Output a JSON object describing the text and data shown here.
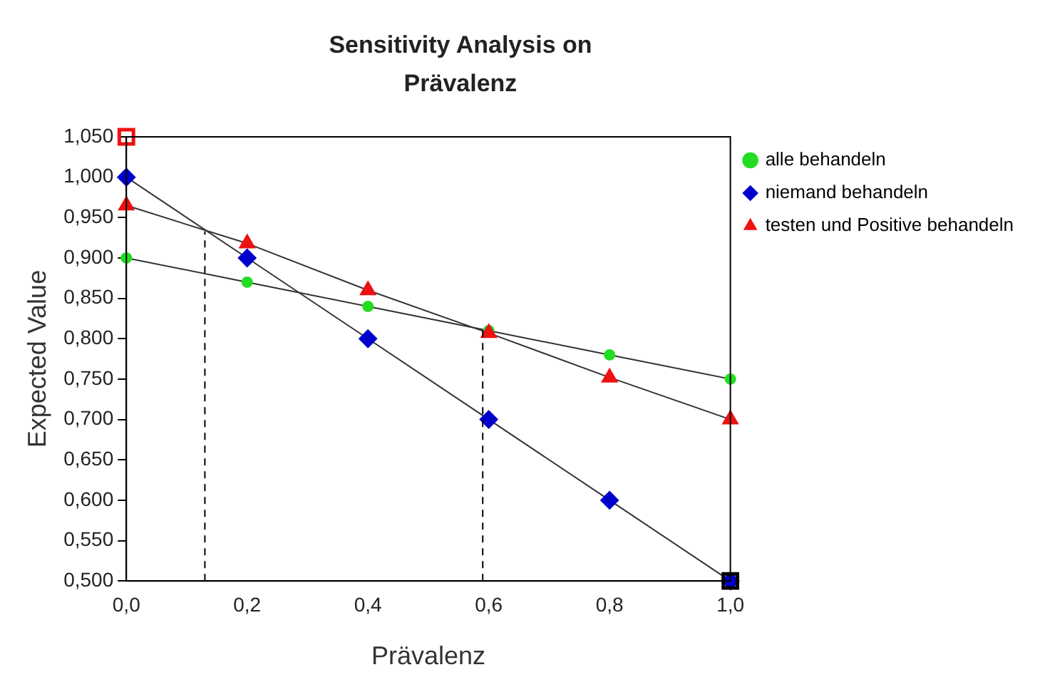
{
  "chart_data": {
    "type": "line",
    "title": "Sensitivity Analysis on Prävalenz",
    "xlabel": "Prävalenz",
    "ylabel": "Expected Value",
    "x": [
      0,
      0.2,
      0.4,
      0.6,
      0.8,
      1
    ],
    "series": [
      {
        "name": "alle behandeln",
        "color": "#22dd22",
        "marker": "circle",
        "values": [
          0.9,
          0.87,
          0.84,
          0.81,
          0.78,
          0.75
        ]
      },
      {
        "name": "niemand behandeln",
        "color": "#0000cc",
        "marker": "diamond",
        "values": [
          1,
          0.9,
          0.8,
          0.7,
          0.6,
          0.5
        ]
      },
      {
        "name": "testen und Positive behandeln",
        "color": "#ee1111",
        "marker": "triangle",
        "values": [
          0.965,
          0.918,
          0.86,
          0.807,
          0.752,
          0.7
        ]
      },
      {
        "type": "line",
        "color": "#000000",
        "line_style": "dashed",
        "marker": "none",
        "x": [
          0.13,
          0.13
        ],
        "values": [
          0.5,
          0.933
        ]
      },
      {
        "type": "line",
        "color": "#000000",
        "line_style": "dashed",
        "marker": "none",
        "x": [
          0.59,
          0.59
        ],
        "values": [
          0.5,
          0.81
        ]
      },
      {
        "type": "scatter",
        "color": "#ee1111",
        "marker": "square",
        "x": [
          0
        ],
        "values": [
          1.05
        ]
      },
      {
        "type": "scatter",
        "color": "#000000",
        "marker": "square",
        "x": [
          1
        ],
        "values": [
          0.5
        ]
      }
    ],
    "xlim": [
      0,
      1
    ],
    "xticks": [
      {
        "value": 0,
        "label": "0,0"
      },
      {
        "value": 0.2,
        "label": "0,2"
      },
      {
        "value": 0.4,
        "label": "0,4"
      },
      {
        "value": 0.6,
        "label": "0,6"
      },
      {
        "value": 0.8,
        "label": "0,8"
      },
      {
        "value": 1,
        "label": "1,0"
      }
    ],
    "ylim": [
      0.5,
      1.05
    ],
    "yticks": [
      {
        "value": 0.5,
        "label": "0,500"
      },
      {
        "value": 0.55,
        "label": "0,550"
      },
      {
        "value": 0.6,
        "label": "0,600"
      },
      {
        "value": 0.65,
        "label": "0,650"
      },
      {
        "value": 0.7,
        "label": "0,700"
      },
      {
        "value": 0.75,
        "label": "0,750"
      },
      {
        "value": 0.8,
        "label": "0,800"
      },
      {
        "value": 0.85,
        "label": "0,850"
      },
      {
        "value": 0.9,
        "label": "0,900"
      },
      {
        "value": 0.95,
        "label": "0,950"
      },
      {
        "value": 1,
        "label": "1,000"
      },
      {
        "value": 1.05,
        "label": "1,050"
      }
    ],
    "grid": false,
    "legend": "right"
  }
}
